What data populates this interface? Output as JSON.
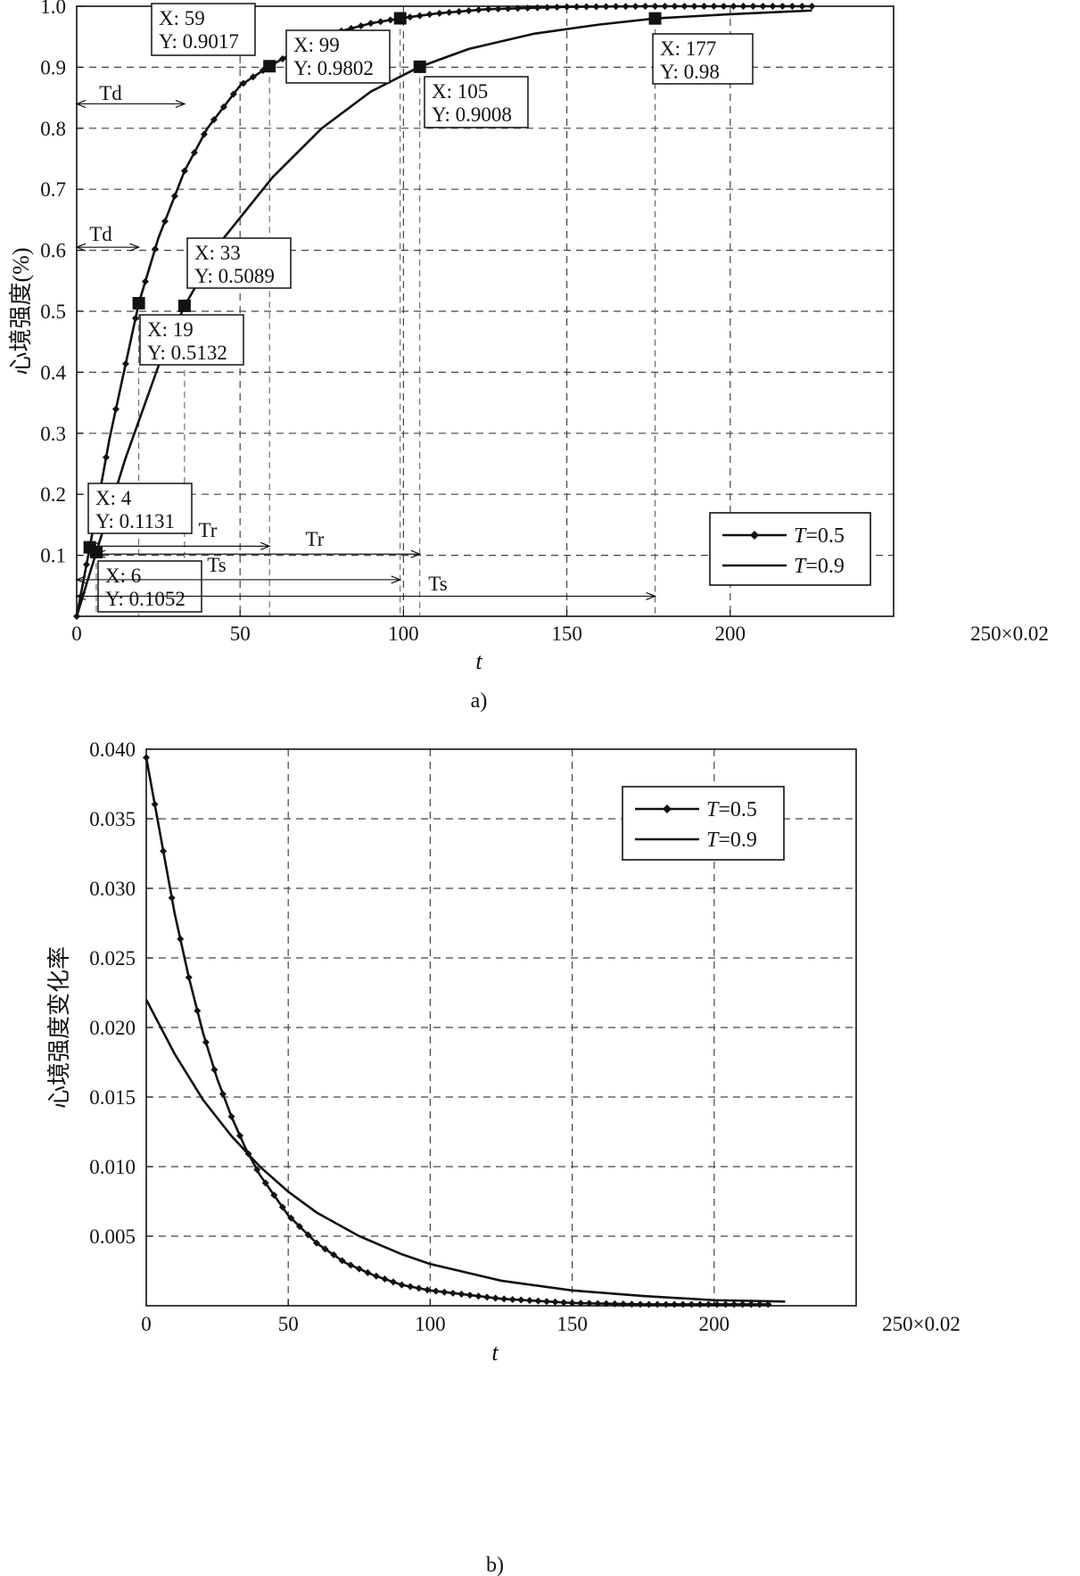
{
  "chart_data": [
    {
      "type": "line",
      "caption": "a)",
      "xlabel": "t",
      "ylabel": "心境强度(%)",
      "x_unit_label": "250×0.02",
      "xlim": [
        0,
        250
      ],
      "ylim": [
        0,
        1.0
      ],
      "x_ticks": [
        0,
        50,
        100,
        150,
        200
      ],
      "x_tick_labels": [
        "0",
        "50",
        "100",
        "150",
        "200"
      ],
      "y_ticks": [
        0.1,
        0.2,
        0.3,
        0.4,
        0.5,
        0.6,
        0.7,
        0.8,
        0.9,
        1.0
      ],
      "y_tick_labels": [
        "0.1",
        "0.2",
        "0.3",
        "0.4",
        "0.5",
        "0.6",
        "0.7",
        "0.8",
        "0.9",
        "1.0"
      ],
      "grid": true,
      "legend": {
        "position": "bottom-right",
        "entries": [
          {
            "label_var": "T",
            "label_rest": "=0.5",
            "marker": "diamond"
          },
          {
            "label_var": "T",
            "label_rest": "=0.9",
            "marker": "none"
          }
        ]
      },
      "series": [
        {
          "x": [
            0,
            4,
            10,
            19,
            25,
            33,
            40,
            50,
            59,
            70,
            80,
            90,
            99,
            110,
            125,
            150,
            175,
            200,
            225
          ],
          "y": [
            0,
            0.1131,
            0.29,
            0.5132,
            0.62,
            0.73,
            0.8,
            0.87,
            0.9017,
            0.935,
            0.958,
            0.972,
            0.9802,
            0.988,
            0.995,
            0.999,
            1.0,
            1.0,
            1.0
          ],
          "marker": "diamond"
        },
        {
          "x": [
            0,
            6,
            15,
            25,
            33,
            45,
            60,
            75,
            90,
            105,
            120,
            140,
            160,
            177,
            200,
            225
          ],
          "y": [
            0,
            0.1052,
            0.26,
            0.41,
            0.5089,
            0.62,
            0.72,
            0.8,
            0.86,
            0.9008,
            0.93,
            0.955,
            0.97,
            0.98,
            0.987,
            0.993
          ],
          "marker": "none"
        }
      ],
      "annotations": [
        {
          "x": 4,
          "y": 0.1131,
          "label_x": "X: 4",
          "label_y": "Y: 0.1131"
        },
        {
          "x": 6,
          "y": 0.1052,
          "label_x": "X: 6",
          "label_y": "Y: 0.1052"
        },
        {
          "x": 19,
          "y": 0.5132,
          "label_x": "X: 19",
          "label_y": "Y: 0.5132"
        },
        {
          "x": 33,
          "y": 0.5089,
          "label_x": "X: 33",
          "label_y": "Y: 0.5089"
        },
        {
          "x": 59,
          "y": 0.9017,
          "label_x": "X: 59",
          "label_y": "Y: 0.9017"
        },
        {
          "x": 99,
          "y": 0.9802,
          "label_x": "X: 99",
          "label_y": "Y: 0.9802"
        },
        {
          "x": 105,
          "y": 0.9008,
          "label_x": "X: 105",
          "label_y": "Y: 0.9008"
        },
        {
          "x": 177,
          "y": 0.98,
          "label_x": "X: 177",
          "label_y": "Y: 0.98"
        }
      ],
      "intervals": [
        {
          "label": "Td",
          "y": 0.84,
          "x_from": 0,
          "x_to": 33
        },
        {
          "label": "Td",
          "y": 0.605,
          "x_from": 0,
          "x_to": 19
        },
        {
          "label": "Tr",
          "y": 0.115,
          "x_from": 4,
          "x_to": 59
        },
        {
          "label": "Tr",
          "y": 0.102,
          "x_from": 6,
          "x_to": 105
        },
        {
          "label": "Ts",
          "y": 0.06,
          "x_from": 0,
          "x_to": 99
        },
        {
          "label": "Ts",
          "y": 0.033,
          "x_from": 0,
          "x_to": 177
        }
      ]
    },
    {
      "type": "line",
      "caption": "b)",
      "xlabel": "t",
      "ylabel": "心境强度变化率",
      "x_unit_label": "250×0.02",
      "xlim": [
        0,
        250
      ],
      "ylim": [
        0,
        0.04
      ],
      "x_ticks": [
        0,
        50,
        100,
        150,
        200
      ],
      "x_tick_labels": [
        "0",
        "50",
        "100",
        "150",
        "200"
      ],
      "y_ticks": [
        0.005,
        0.01,
        0.015,
        0.02,
        0.025,
        0.03,
        0.035,
        0.04
      ],
      "y_tick_labels": [
        "0.005",
        "0.010",
        "0.015",
        "0.020",
        "0.025",
        "0.030",
        "0.035",
        "0.040"
      ],
      "grid": true,
      "legend": {
        "position": "top-right",
        "entries": [
          {
            "label_var": "T",
            "label_rest": "=0.5",
            "marker": "diamond"
          },
          {
            "label_var": "T",
            "label_rest": "=0.9",
            "marker": "none"
          }
        ]
      },
      "series": [
        {
          "x": [
            0,
            5,
            10,
            15,
            20,
            25,
            30,
            35,
            40,
            50,
            60,
            70,
            80,
            90,
            100,
            125,
            150,
            175,
            200,
            220
          ],
          "y": [
            0.0394,
            0.0338,
            0.0282,
            0.0236,
            0.0196,
            0.0163,
            0.0136,
            0.0113,
            0.0094,
            0.0065,
            0.0045,
            0.0031,
            0.0022,
            0.0015,
            0.0011,
            0.0005,
            0.0002,
            0.0001,
            0.0001,
            0.0001
          ],
          "marker": "diamond"
        },
        {
          "x": [
            0,
            10,
            20,
            30,
            40,
            50,
            60,
            75,
            90,
            100,
            125,
            150,
            175,
            200,
            225
          ],
          "y": [
            0.022,
            0.0181,
            0.0148,
            0.0122,
            0.01,
            0.0082,
            0.0067,
            0.005,
            0.0037,
            0.003,
            0.0018,
            0.0011,
            0.0007,
            0.0004,
            0.0003
          ],
          "marker": "none"
        }
      ]
    }
  ]
}
